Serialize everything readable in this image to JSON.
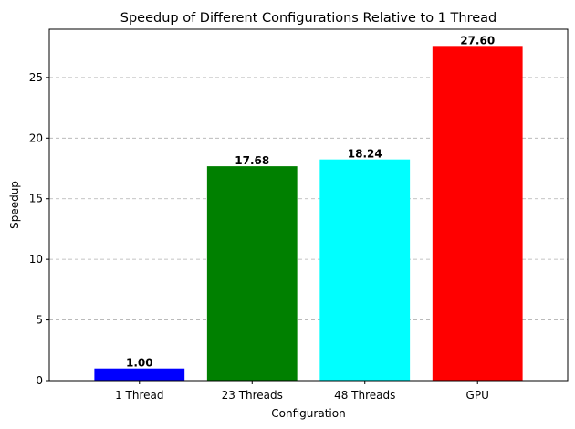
{
  "chart_data": {
    "type": "bar",
    "title": "Speedup of Different Configurations Relative to 1 Thread",
    "xlabel": "Configuration",
    "ylabel": "Speedup",
    "categories": [
      "1 Thread",
      "23 Threads",
      "48 Threads",
      "GPU"
    ],
    "values": [
      1.0,
      17.68,
      18.24,
      27.6
    ],
    "value_labels": [
      "1.00",
      "17.68",
      "18.24",
      "27.60"
    ],
    "colors": [
      "#0000ff",
      "#008000",
      "#00ffff",
      "#ff0000"
    ],
    "ylim": [
      0,
      28.98
    ],
    "yticks": [
      0,
      5,
      10,
      15,
      20,
      25
    ],
    "grid": "y-dashed",
    "legend": "none"
  }
}
